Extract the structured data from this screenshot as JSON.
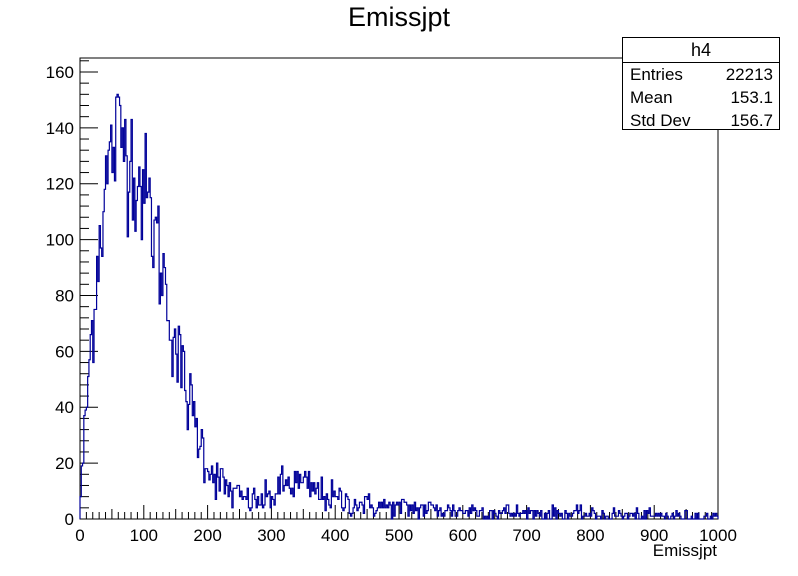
{
  "chart_data": {
    "type": "bar",
    "title": "Emissjpt",
    "xlabel": "Emissjpt",
    "ylabel": "",
    "xlim": [
      0,
      1000
    ],
    "ylim": [
      0,
      165
    ],
    "bin_width": 2,
    "line_color": "#000099",
    "x_ticks": [
      0,
      100,
      200,
      300,
      400,
      500,
      600,
      700,
      800,
      900,
      1000
    ],
    "y_ticks": [
      0,
      20,
      40,
      60,
      80,
      100,
      120,
      140,
      160
    ],
    "grid": false,
    "legend": "none",
    "profile_anchors_x": [
      0,
      10,
      20,
      30,
      40,
      50,
      60,
      70,
      80,
      90,
      100,
      110,
      120,
      130,
      140,
      150,
      160,
      170,
      180,
      190,
      200,
      220,
      240,
      260,
      280,
      300,
      320,
      340,
      360,
      380,
      400,
      450,
      500,
      550,
      600,
      650,
      700,
      750,
      800,
      850,
      900,
      950,
      1000
    ],
    "profile_anchors_y": [
      5,
      40,
      72,
      100,
      118,
      132,
      137,
      136,
      130,
      122,
      118,
      110,
      100,
      88,
      75,
      62,
      52,
      43,
      35,
      27,
      20,
      13,
      9,
      7,
      6,
      8,
      12,
      13,
      11,
      9,
      7,
      5,
      4,
      3.5,
      3,
      2.5,
      2,
      1.8,
      1.5,
      1.3,
      1.1,
      1,
      0.8
    ]
  },
  "stats_box": {
    "name": "h4",
    "rows": [
      {
        "label": "Entries",
        "value": "22213"
      },
      {
        "label": "Mean",
        "value": "153.1"
      },
      {
        "label": "Std Dev",
        "value": "156.7"
      }
    ]
  }
}
